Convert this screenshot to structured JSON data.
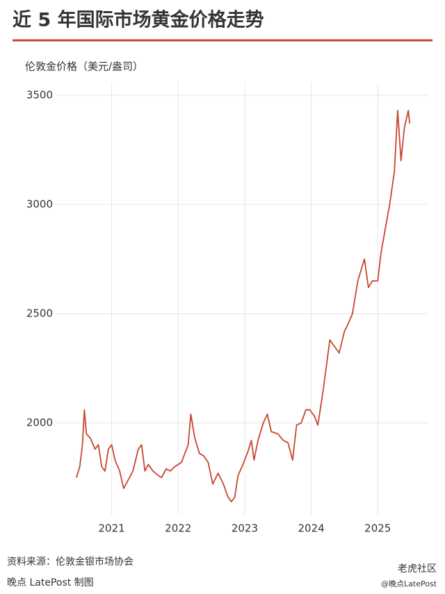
{
  "chart_data": {
    "type": "line",
    "title": "近 5 年国际市场黄金价格走势",
    "y_label": "伦敦金价格（美元/盎司）",
    "source": "资料来源：伦敦金银市场协会",
    "credit": "晚点 LatePost 制图",
    "watermarks": [
      "老虎社区",
      "@晚点LatePost"
    ],
    "x": [
      2020.47,
      2020.52,
      2020.56,
      2020.59,
      2020.62,
      2020.68,
      2020.75,
      2020.8,
      2020.85,
      2020.9,
      2020.95,
      2021.0,
      2021.05,
      2021.12,
      2021.18,
      2021.25,
      2021.32,
      2021.4,
      2021.45,
      2021.5,
      2021.55,
      2021.62,
      2021.7,
      2021.75,
      2021.82,
      2021.88,
      2021.95,
      2022.05,
      2022.15,
      2022.19,
      2022.25,
      2022.32,
      2022.38,
      2022.45,
      2022.52,
      2022.6,
      2022.68,
      2022.75,
      2022.8,
      2022.85,
      2022.9,
      2022.96,
      2023.05,
      2023.1,
      2023.14,
      2023.2,
      2023.28,
      2023.34,
      2023.4,
      2023.5,
      2023.58,
      2023.65,
      2023.72,
      2023.78,
      2023.85,
      2023.92,
      2023.98,
      2024.05,
      2024.1,
      2024.18,
      2024.28,
      2024.35,
      2024.42,
      2024.5,
      2024.55,
      2024.62,
      2024.7,
      2024.8,
      2024.86,
      2024.92,
      2025.0,
      2025.05,
      2025.12,
      2025.18,
      2025.25,
      2025.3,
      2025.35,
      2025.4,
      2025.46,
      2025.48
    ],
    "series": [
      {
        "name": "伦敦金价格",
        "color": "#c8442f",
        "values": [
          1750,
          1800,
          1900,
          2060,
          1950,
          1930,
          1880,
          1900,
          1800,
          1780,
          1880,
          1900,
          1830,
          1780,
          1700,
          1740,
          1780,
          1880,
          1900,
          1780,
          1810,
          1780,
          1760,
          1750,
          1790,
          1780,
          1800,
          1820,
          1900,
          2040,
          1930,
          1860,
          1850,
          1820,
          1720,
          1770,
          1720,
          1660,
          1640,
          1660,
          1760,
          1800,
          1870,
          1920,
          1830,
          1920,
          2000,
          2040,
          1960,
          1950,
          1920,
          1910,
          1830,
          1990,
          2000,
          2060,
          2060,
          2030,
          1990,
          2150,
          2380,
          2350,
          2320,
          2420,
          2450,
          2500,
          2650,
          2750,
          2620,
          2650,
          2650,
          2780,
          2900,
          3000,
          3150,
          3430,
          3200,
          3350,
          3430,
          3370
        ]
      }
    ],
    "xlim": [
      2020.45,
      2025.75
    ],
    "xticks": [
      2021,
      2022,
      2023,
      2024,
      2025
    ],
    "ylim": [
      1580,
      3560
    ],
    "yticks": [
      2000,
      2500,
      3000,
      3500
    ],
    "grid": true
  }
}
